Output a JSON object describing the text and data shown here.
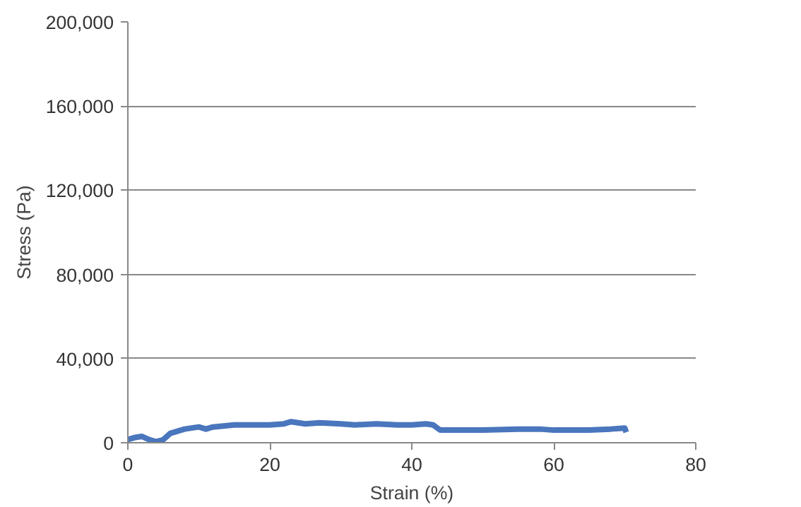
{
  "chart_data": {
    "type": "line",
    "xlabel": "Strain (%)",
    "ylabel": "Stress (Pa)",
    "xlim": [
      0,
      80
    ],
    "xticks": [
      0,
      20,
      40,
      60,
      80
    ],
    "ylim": [
      0,
      200000
    ],
    "yticks": [
      {
        "value": 0,
        "label": "0"
      },
      {
        "value": 40000,
        "label": "40,000"
      },
      {
        "value": 80000,
        "label": "80,000"
      },
      {
        "value": 120000,
        "label": "120,000"
      },
      {
        "value": 160000,
        "label": "160,000"
      },
      {
        "value": 200000,
        "label": "200,000"
      }
    ],
    "grid": "y",
    "line_style": "solid",
    "marker": "none",
    "series": [
      {
        "color": "#4a76bd",
        "x": [
          0,
          1,
          2,
          3,
          4,
          5,
          6,
          8,
          10,
          11,
          12,
          15,
          18,
          20,
          22,
          23,
          25,
          27,
          30,
          32,
          35,
          38,
          40,
          42,
          43,
          44,
          46,
          50,
          55,
          58,
          60,
          65,
          68,
          70,
          70.2
        ],
        "values": [
          1500,
          2500,
          3000,
          1500,
          500,
          1500,
          4500,
          6500,
          7500,
          6500,
          7500,
          8500,
          8500,
          8500,
          9000,
          10000,
          9000,
          9500,
          9000,
          8500,
          9000,
          8500,
          8500,
          9000,
          8500,
          6000,
          6000,
          6000,
          6500,
          6500,
          6000,
          6000,
          6500,
          7000,
          5000
        ]
      }
    ]
  }
}
